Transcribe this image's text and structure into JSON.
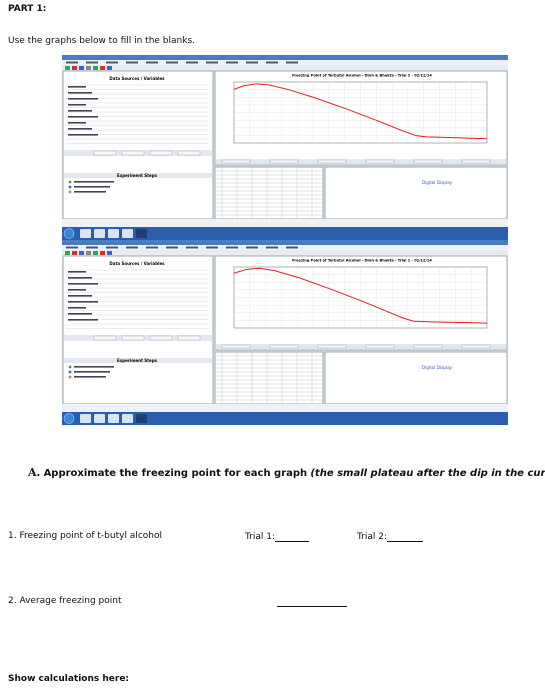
{
  "header": {
    "part": "PART 1:",
    "instruction": "Use the graphs below to fill in the blanks."
  },
  "screenshots": [
    {
      "panel_title": "Data Sources / Variables",
      "steps_title": "Experiment Steps",
      "graph_title": "Freezing Point of Terbutyl Alcohol - Dinh & Bhakta - Trial 2 - 02/12/14",
      "display_label": "Digital Display"
    },
    {
      "panel_title": "Data Sources / Variables",
      "steps_title": "Experiment Steps",
      "graph_title": "Freezing Point of Terbutyl Alcohol - Dinh & Bhakta - Trial 1 - 02/12/14",
      "display_label": "Digital Display"
    }
  ],
  "question": {
    "letter": "A.",
    "text": "Approximate the freezing point for each graph",
    "hint": "(the small plateau after the dip in the curve)"
  },
  "items": [
    {
      "label": "1. Freezing point of t-butyl alcohol",
      "fields": [
        "Trial 1:",
        "Trial 2:"
      ]
    },
    {
      "label": "2. Average freezing point"
    }
  ],
  "footer": "Show calculations here:"
}
